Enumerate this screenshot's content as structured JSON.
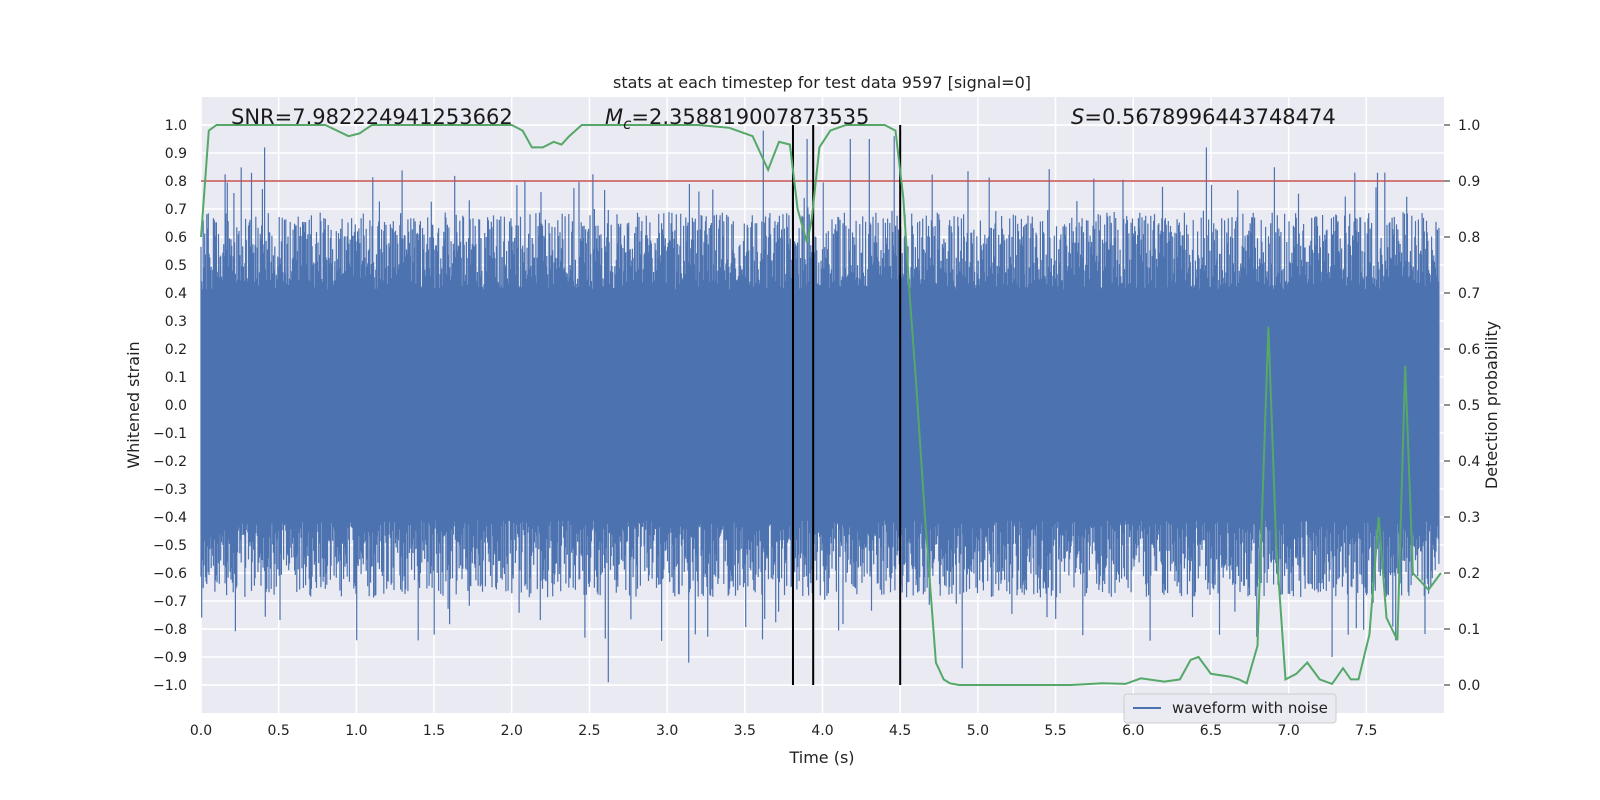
{
  "chart_data": {
    "type": "line",
    "title": "stats at each timestep for test data 9597 [signal=0]",
    "xlabel": "Time (s)",
    "ylabel": "Whitened strain",
    "y2label": "Detection probability",
    "xlim": [
      0.0,
      8.0
    ],
    "ylim": [
      -1.1,
      1.1
    ],
    "y2lim": [
      -0.05,
      1.05
    ],
    "grid": true,
    "legend_position": "lower-right",
    "x_ticks": [
      "0.0",
      "0.5",
      "1.0",
      "1.5",
      "2.0",
      "2.5",
      "3.0",
      "3.5",
      "4.0",
      "4.5",
      "5.0",
      "5.5",
      "6.0",
      "6.5",
      "7.0",
      "7.5"
    ],
    "y_ticks": [
      "1.0",
      "0.9",
      "0.8",
      "0.7",
      "0.6",
      "0.5",
      "0.4",
      "0.3",
      "0.2",
      "0.1",
      "0.0",
      "−0.1",
      "−0.2",
      "−0.3",
      "−0.4",
      "−0.5",
      "−0.6",
      "−0.7",
      "−0.8",
      "−0.9",
      "−1.0"
    ],
    "y2_ticks": [
      "1.0",
      "0.9",
      "0.8",
      "0.7",
      "0.6",
      "0.5",
      "0.4",
      "0.3",
      "0.2",
      "0.1",
      "0.0"
    ],
    "annotations": {
      "snr": "SNR=7.982224941253662",
      "mc_symbol": "M",
      "mc_sub": "c",
      "mc_value": "=2.358819007873535",
      "s_symbol": "S",
      "s_value": "=0.5678996443748474"
    },
    "threshold_y2": 0.9,
    "vertical_lines_x": [
      3.81,
      3.94,
      4.5
    ],
    "series": [
      {
        "name": "waveform with noise",
        "axis": "left",
        "color": "#4c72b0",
        "envelope_top_approx": 0.55,
        "envelope_bottom_approx": -0.55,
        "notable_peaks": [
          {
            "x": 0.41,
            "y": 0.92
          },
          {
            "x": 3.62,
            "y": 0.98
          },
          {
            "x": 3.9,
            "y": 0.95
          },
          {
            "x": 4.18,
            "y": 0.95
          },
          {
            "x": 4.3,
            "y": 0.95
          },
          {
            "x": 4.46,
            "y": 0.96
          },
          {
            "x": 6.47,
            "y": 0.92
          },
          {
            "x": 7.62,
            "y": 0.83
          },
          {
            "x": 1.0,
            "y": -0.84
          },
          {
            "x": 1.5,
            "y": -0.82
          },
          {
            "x": 2.62,
            "y": -0.99
          },
          {
            "x": 3.14,
            "y": -0.92
          },
          {
            "x": 4.9,
            "y": -0.94
          },
          {
            "x": 7.28,
            "y": -0.9
          }
        ]
      },
      {
        "name": "",
        "axis": "right",
        "color": "#55a868",
        "x": [
          0.0,
          0.05,
          0.1,
          0.2,
          0.3,
          0.5,
          0.8,
          0.95,
          1.02,
          1.1,
          1.3,
          1.6,
          1.9,
          2.0,
          2.07,
          2.13,
          2.2,
          2.27,
          2.32,
          2.37,
          2.45,
          2.6,
          3.0,
          3.2,
          3.4,
          3.55,
          3.65,
          3.72,
          3.79,
          3.84,
          3.9,
          3.93,
          3.98,
          4.05,
          4.15,
          4.3,
          4.4,
          4.47,
          4.52,
          4.56,
          4.6,
          4.66,
          4.73,
          4.78,
          4.82,
          4.88,
          5.0,
          5.3,
          5.6,
          5.8,
          5.95,
          6.05,
          6.2,
          6.3,
          6.37,
          6.42,
          6.5,
          6.62,
          6.68,
          6.73,
          6.8,
          6.87,
          6.92,
          6.98,
          7.05,
          7.12,
          7.2,
          7.28,
          7.35,
          7.4,
          7.45,
          7.52,
          7.58,
          7.63,
          7.7,
          7.75,
          7.8,
          7.9,
          7.98
        ],
        "values": [
          0.8,
          0.99,
          1.0,
          1.0,
          1.0,
          1.0,
          1.0,
          0.98,
          0.985,
          1.0,
          1.0,
          1.0,
          1.0,
          1.0,
          0.99,
          0.96,
          0.96,
          0.97,
          0.965,
          0.98,
          1.0,
          1.0,
          1.0,
          1.0,
          0.995,
          0.98,
          0.92,
          0.97,
          0.965,
          0.85,
          0.79,
          0.83,
          0.96,
          0.99,
          1.0,
          1.0,
          1.0,
          0.99,
          0.87,
          0.7,
          0.55,
          0.3,
          0.04,
          0.01,
          0.003,
          0.0,
          0.0,
          0.0,
          0.0,
          0.003,
          0.002,
          0.012,
          0.006,
          0.01,
          0.045,
          0.05,
          0.02,
          0.015,
          0.01,
          0.003,
          0.07,
          0.64,
          0.25,
          0.01,
          0.02,
          0.04,
          0.01,
          0.002,
          0.03,
          0.01,
          0.01,
          0.09,
          0.3,
          0.12,
          0.08,
          0.57,
          0.2,
          0.17,
          0.2
        ]
      }
    ]
  }
}
